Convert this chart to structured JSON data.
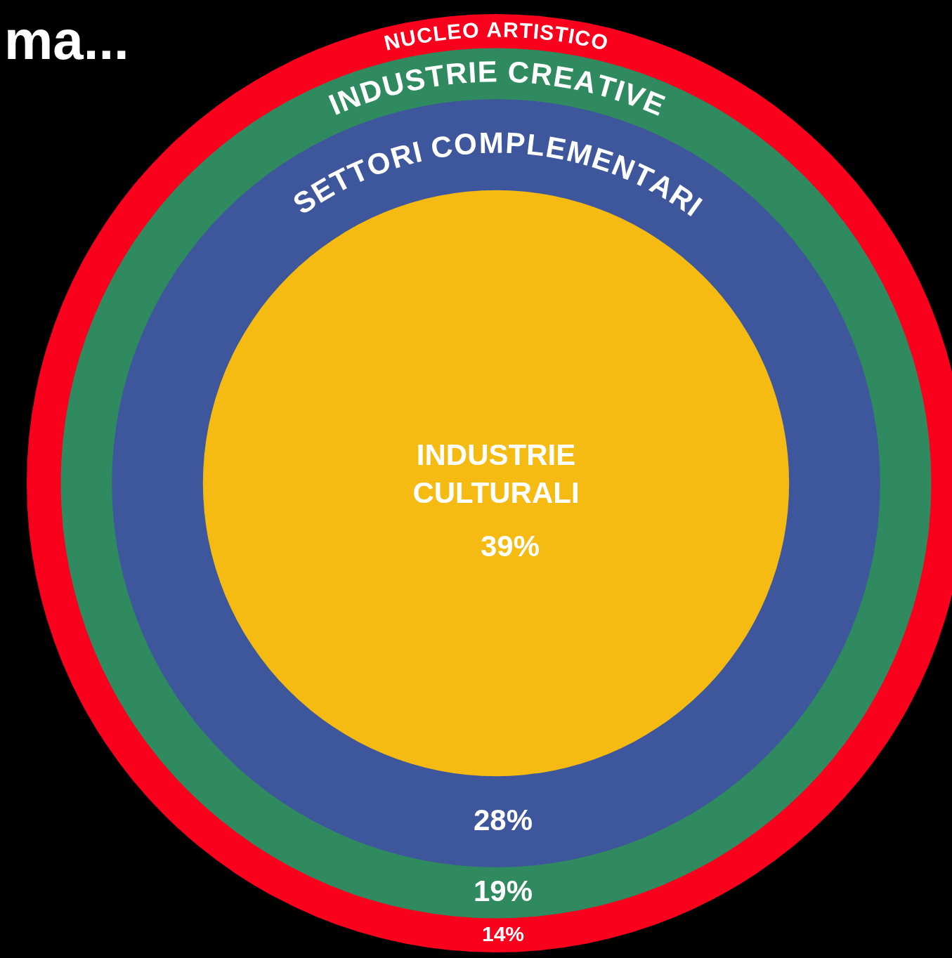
{
  "chart_data": {
    "type": "other",
    "title": "ma...",
    "categories": [
      "INDUSTRIE CULTURALI",
      "SETTORI COMPLEMENTARI",
      "INDUSTRIE CREATIVE",
      "NUCLEO ARTISTICO"
    ],
    "values": [
      39,
      28,
      19,
      14
    ],
    "colors": [
      "#f5bb12",
      "#3e569b",
      "#2f8a60",
      "#f9001c"
    ],
    "value_labels": [
      "39%",
      "28%",
      "19%",
      "14%"
    ]
  }
}
